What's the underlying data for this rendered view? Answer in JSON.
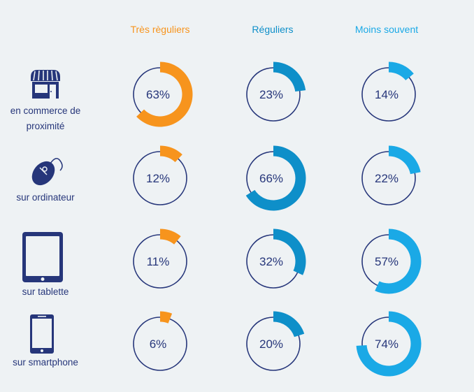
{
  "chart_data": {
    "type": "donut-grid",
    "title": "",
    "columns": [
      {
        "label": "Très règuliers",
        "color": "#f7941d"
      },
      {
        "label": "Réguliers",
        "color": "#0e8fc9"
      },
      {
        "label": "Moins souvent",
        "color": "#1aa9e6"
      }
    ],
    "rows": [
      {
        "label_lines": [
          "en commerce de",
          "proximité"
        ],
        "icon": "shop-icon",
        "values": [
          63,
          23,
          14
        ]
      },
      {
        "label_lines": [
          "sur ordinateur"
        ],
        "icon": "computer-mouse-icon",
        "values": [
          12,
          66,
          22
        ]
      },
      {
        "label_lines": [
          "sur tablette"
        ],
        "icon": "tablet-icon",
        "values": [
          11,
          32,
          57
        ]
      },
      {
        "label_lines": [
          "sur smartphone"
        ],
        "icon": "smartphone-icon",
        "values": [
          6,
          20,
          74
        ]
      }
    ],
    "value_suffix": "%",
    "outline_color": "#26367a"
  }
}
